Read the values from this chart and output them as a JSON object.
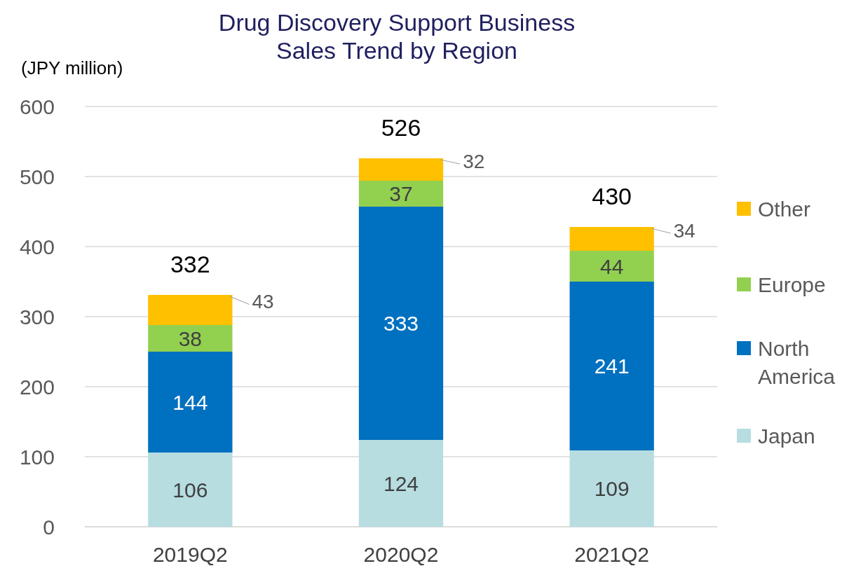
{
  "chart_data": {
    "type": "bar",
    "title": "Drug Discovery Support Business\nSales Trend by Region",
    "ylabel": "(JPY million)",
    "categories": [
      "2019Q2",
      "2020Q2",
      "2021Q2"
    ],
    "stacked": true,
    "series": [
      {
        "name": "Japan",
        "color": "#b7dde1",
        "values": [
          106,
          124,
          109
        ]
      },
      {
        "name": "North America",
        "color": "#0070c0",
        "values": [
          144,
          333,
          241
        ]
      },
      {
        "name": "Europe",
        "color": "#92d050",
        "values": [
          38,
          37,
          44
        ]
      },
      {
        "name": "Other",
        "color": "#ffc000",
        "values": [
          43,
          32,
          34
        ]
      }
    ],
    "ylim": [
      0,
      600
    ],
    "yticks": [
      0,
      100,
      200,
      300,
      400,
      500,
      600
    ],
    "grid": "y",
    "legend": "right",
    "data_labels": true,
    "totals": [
      "332",
      "526",
      "430"
    ]
  }
}
